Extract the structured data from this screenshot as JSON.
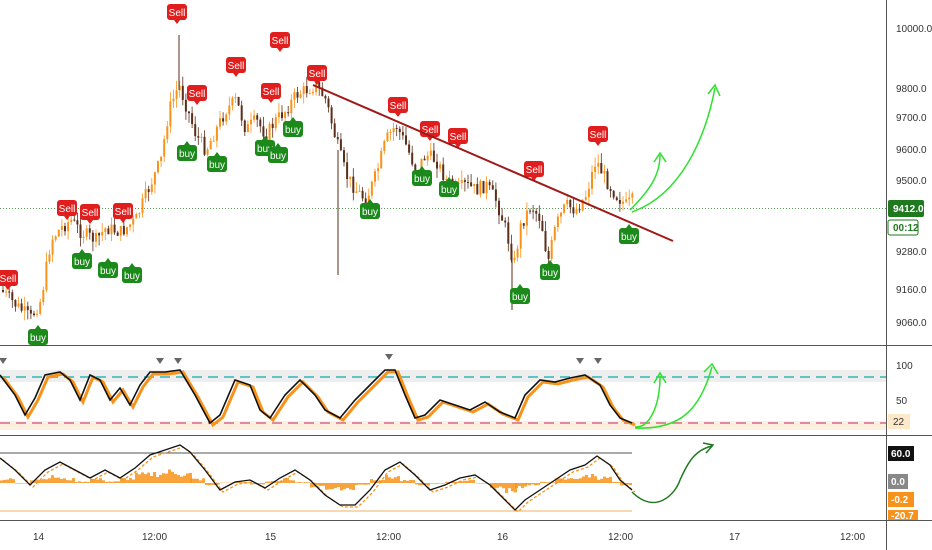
{
  "colors": {
    "up": "#f7931a",
    "down": "#5a2e1a",
    "sell": "#e01e1e",
    "buy": "#1b8a1b",
    "trendline": "#a01818",
    "arrow": "#2de12d",
    "arrow_dark": "#1f7a1f",
    "current_price": "#1f7a1f",
    "stoch_line": "#111111",
    "stoch_signal": "#f7931a",
    "stoch_band": "#eeeeee",
    "stoch_upper": "#5fc4c4",
    "stoch_lower": "#e08aa0",
    "osc_fill": "#f7931a",
    "osc_upper": "#555555",
    "osc_lower": "#f0b060",
    "neg_value": "#f7931a"
  },
  "price_axis": {
    "labels": [
      "10000.0",
      "9800.0",
      "9700.0",
      "9600.0",
      "9500.0",
      "9280.0",
      "9160.0",
      "9060.0"
    ],
    "current_price": "9412.0",
    "countdown": "00:12"
  },
  "stoch_axis": {
    "labels": [
      "100",
      "50"
    ],
    "current": "22"
  },
  "osc_axis": {
    "label_top": "60.0",
    "label_zero": "0.0",
    "label_value": "-0.2",
    "label_bottom": "-20.7"
  },
  "time_axis": [
    "14",
    "12:00",
    "15",
    "12:00",
    "16",
    "12:00",
    "17",
    "12:00"
  ],
  "signals": {
    "sell_label": "Sell",
    "buy_label": "buy"
  },
  "chart_data": {
    "type": "candlestick",
    "price_levels": [
      10000,
      9800,
      9700,
      9600,
      9500,
      9280,
      9160,
      9060
    ],
    "current_price": 9412,
    "panels": [
      "price",
      "stochastic",
      "oscillator"
    ],
    "signal_count": {
      "sell": 16,
      "buy": 17
    }
  }
}
